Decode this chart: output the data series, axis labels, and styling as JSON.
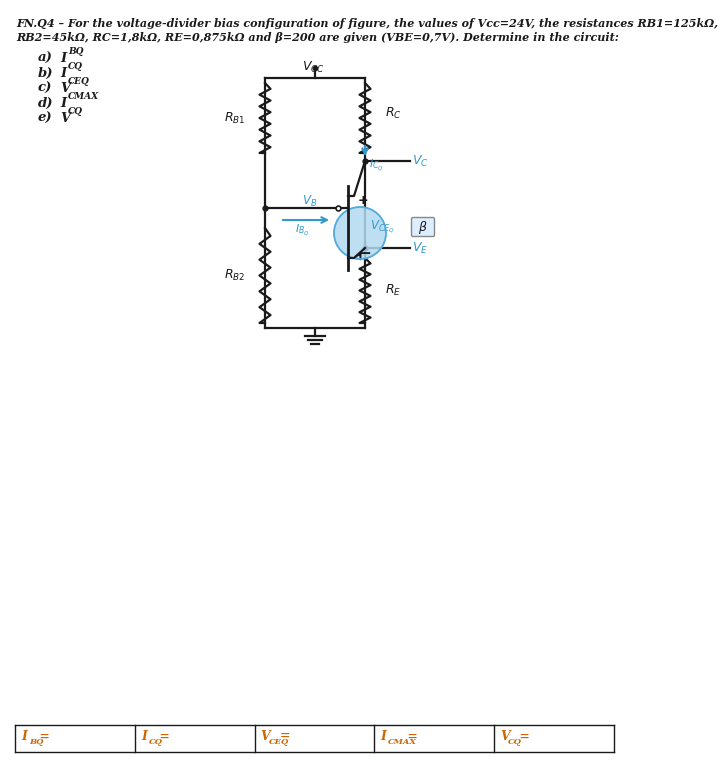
{
  "bg_color": "#ffffff",
  "text_color": "#1a1a1a",
  "blue_color": "#3399cc",
  "circuit_color": "#1a1a1a",
  "orange_color": "#cc6600",
  "header1": "FN.Q4 – For the voltage-divider bias configuration of figure, the values of Vcc=24V, the resistances RB1=125kΩ,",
  "header2": "RB2=45kΩ, RC=1,8kΩ, RE=0,875kΩ and β=200 are given (VBE=0,7V). Determine in the circuit:",
  "q_letters": [
    "a)",
    "b)",
    "c)",
    "d)",
    "e)"
  ],
  "q_syms": [
    "IBQ",
    "ICQ",
    "VCEQ",
    "ICMAX",
    "VCQ"
  ],
  "footer_mains": [
    "I",
    "I",
    "V",
    "I",
    "V"
  ],
  "footer_subs": [
    "BQ",
    "CQ",
    "CEQ",
    "CMAX",
    "CQ"
  ],
  "footer_eq": " ="
}
